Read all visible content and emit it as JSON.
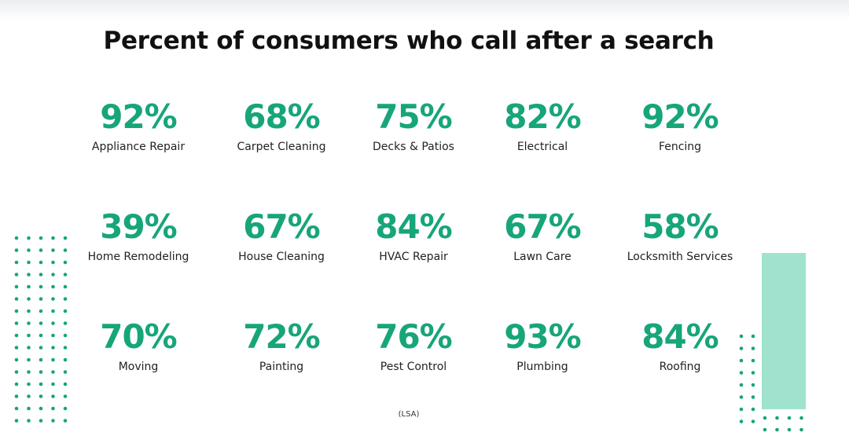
{
  "title": "Percent of consumers who call after a search",
  "source": "(LSA)",
  "colors": {
    "accent": "#17a57a",
    "bar": "#9fe3cf",
    "text": "#111111"
  },
  "chart_data": {
    "type": "table",
    "title": "Percent of consumers who call after a search",
    "unit": "%",
    "categories": [
      "Appliance Repair",
      "Carpet Cleaning",
      "Decks & Patios",
      "Electrical",
      "Fencing",
      "Home Remodeling",
      "House Cleaning",
      "HVAC Repair",
      "Lawn Care",
      "Locksmith Services",
      "Moving",
      "Painting",
      "Pest Control",
      "Plumbing",
      "Roofing"
    ],
    "values": [
      92,
      68,
      75,
      82,
      92,
      39,
      67,
      84,
      67,
      58,
      70,
      72,
      76,
      93,
      84
    ],
    "labels": [
      "92%",
      "68%",
      "75%",
      "82%",
      "92%",
      "39%",
      "67%",
      "84%",
      "67%",
      "58%",
      "70%",
      "72%",
      "76%",
      "93%",
      "84%"
    ]
  }
}
